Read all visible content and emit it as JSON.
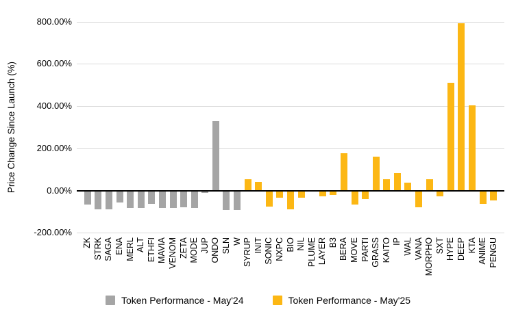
{
  "chart_data": {
    "type": "bar",
    "title": "",
    "ylabel": "Price Change Since Launch (%)",
    "xlabel": "",
    "ylim": [
      -200,
      800
    ],
    "grid": true,
    "legend_position": "bottom",
    "yticks": [
      800,
      600,
      400,
      200,
      0,
      -200
    ],
    "ytick_labels": [
      "800.00%",
      "600.00%",
      "400.00%",
      "200.00%",
      "0.00%",
      "-200.00%"
    ],
    "categories": [
      "ZK",
      "STRK",
      "SAGA",
      "ENA",
      "MERL",
      "ALT",
      "ETHFI",
      "MAVIA",
      "VENOM",
      "ZETA",
      "MODE",
      "JUP",
      "ONDO",
      "SLN",
      "W",
      "SYRUP",
      "INIT",
      "SONIC",
      "NXPC",
      "BIO",
      "NIL",
      "PLUME",
      "LAYER",
      "B3",
      "BERA",
      "MOVE",
      "PARTI",
      "GRASS",
      "KAITO",
      "IP",
      "WAL",
      "VANA",
      "MORPHO",
      "SXT",
      "HYPE",
      "DEEP",
      "KTA",
      "ANIME",
      "PENGU"
    ],
    "series": [
      {
        "name": "Token Performance - May'24",
        "color": "#a5a5a5",
        "values": [
          -68,
          -90,
          -90,
          -58,
          -84,
          -84,
          -62,
          -84,
          -84,
          -80,
          -84,
          -12,
          328,
          -92,
          -92,
          null,
          null,
          null,
          null,
          null,
          null,
          null,
          null,
          null,
          null,
          null,
          null,
          null,
          null,
          null,
          null,
          null,
          null,
          null,
          null,
          null,
          null,
          null,
          null
        ]
      },
      {
        "name": "Token Performance - May'25",
        "color": "#fcb714",
        "values": [
          null,
          null,
          null,
          null,
          null,
          null,
          null,
          null,
          null,
          null,
          null,
          null,
          null,
          null,
          null,
          55,
          42,
          -75,
          -35,
          -90,
          -35,
          -6,
          -27,
          -21,
          178,
          -68,
          -42,
          162,
          52,
          84,
          38,
          -78,
          53,
          -26,
          510,
          792,
          402,
          -64,
          -48
        ]
      }
    ]
  }
}
